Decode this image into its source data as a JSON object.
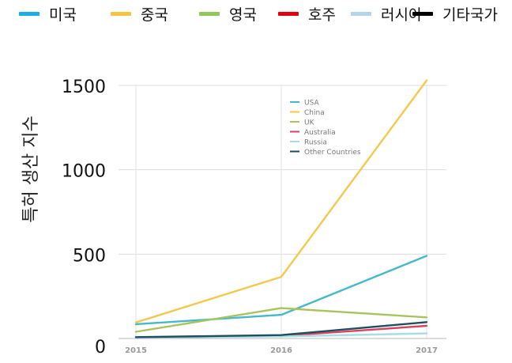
{
  "top_legend": [
    {
      "label": "미국",
      "color": "#1AAEE5"
    },
    {
      "label": "중국",
      "color": "#F5C542"
    },
    {
      "label": "영국",
      "color": "#8FC95A"
    },
    {
      "label": "호주",
      "color": "#E3000F"
    },
    {
      "label": "러시아",
      "color": "#B4D3EC"
    },
    {
      "label": "기타국가",
      "color": "#000000"
    }
  ],
  "chart_data": {
    "type": "line",
    "title": "",
    "xlabel": "",
    "ylabel": "특허 생산 지수",
    "x": [
      "2015",
      "2016",
      "2017"
    ],
    "y_ticks": [
      "0",
      "500",
      "1000",
      "1500"
    ],
    "ylim": [
      0,
      1500
    ],
    "grid": true,
    "legend_position": "top-center",
    "series": [
      {
        "name": "USA",
        "color": "#45B9CC",
        "values": [
          85,
          140,
          490
        ]
      },
      {
        "name": "China",
        "color": "#F2C94C",
        "values": [
          95,
          365,
          1530
        ]
      },
      {
        "name": "UK",
        "color": "#A9C45A",
        "values": [
          40,
          180,
          125
        ]
      },
      {
        "name": "Australia",
        "color": "#D9435E",
        "values": [
          5,
          15,
          75
        ]
      },
      {
        "name": "Russia",
        "color": "#A8DCE6",
        "values": [
          5,
          12,
          30
        ]
      },
      {
        "name": "Other Countries",
        "color": "#1F4E5F",
        "values": [
          8,
          20,
          97
        ]
      }
    ]
  }
}
